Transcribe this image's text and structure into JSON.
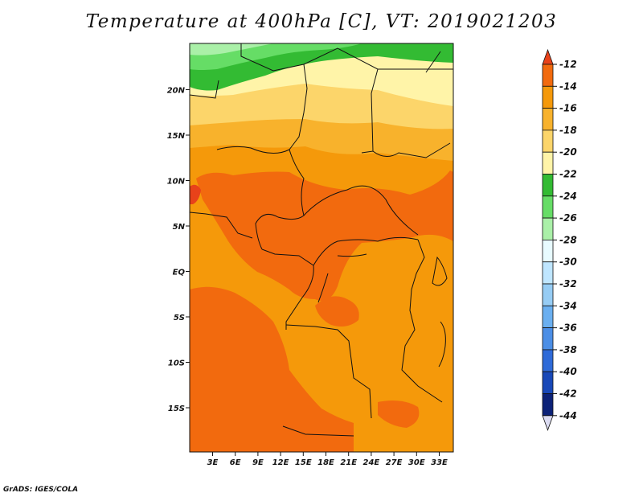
{
  "title": "Temperature at 400hPa [C], VT: 2019021203",
  "credit": "GrADS: IGES/COLA",
  "map": {
    "lon_labels": [
      "3E",
      "6E",
      "9E",
      "12E",
      "15E",
      "18E",
      "21E",
      "24E",
      "27E",
      "30E",
      "33E"
    ],
    "lon_values": [
      3,
      6,
      9,
      12,
      15,
      18,
      21,
      24,
      27,
      30,
      33
    ],
    "lat_labels": [
      "20N",
      "15N",
      "10N",
      "5N",
      "EQ",
      "5S",
      "10S",
      "15S"
    ],
    "lat_values": [
      20,
      15,
      10,
      5,
      0,
      -5,
      -10,
      -15
    ]
  },
  "colorbar": {
    "labels": [
      "-12",
      "-14",
      "-16",
      "-18",
      "-20",
      "-22",
      "-24",
      "-26",
      "-28",
      "-30",
      "-32",
      "-34",
      "-36",
      "-38",
      "-40",
      "-42",
      "-44"
    ],
    "colors": [
      "#e8421a",
      "#f26a0e",
      "#f5990a",
      "#f8b22c",
      "#fcd56a",
      "#fff4a8",
      "#33bb33",
      "#66dd66",
      "#aaf0a8",
      "#e8fbff",
      "#bfe6ff",
      "#96ccf4",
      "#6aaff0",
      "#4b8ee6",
      "#2e6ad8",
      "#1848b8",
      "#0c2278",
      "#dcdcf2"
    ]
  }
}
